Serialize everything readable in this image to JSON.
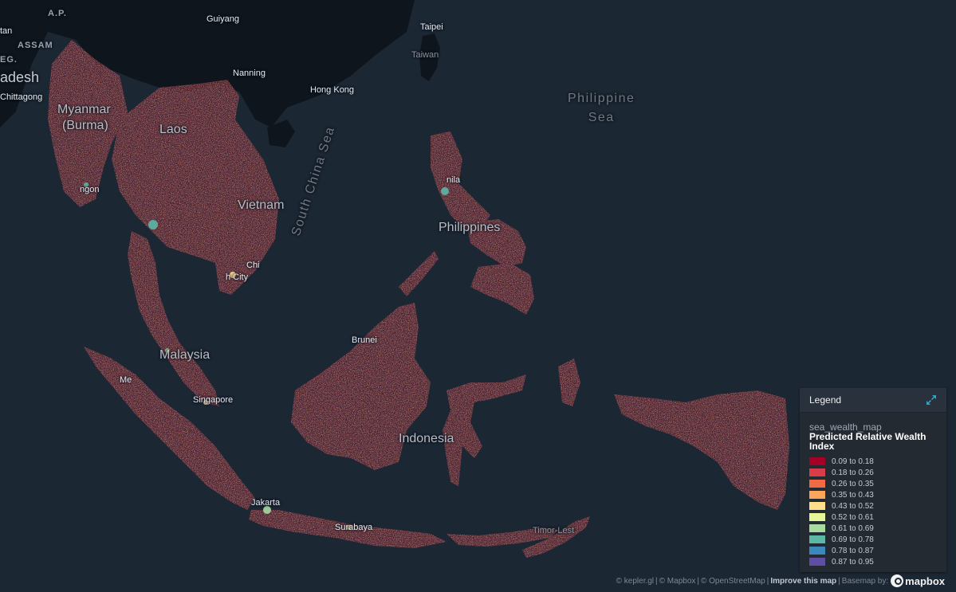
{
  "map": {
    "land_color": "#0f151d",
    "water_color": "#1c2734",
    "wealth_colors": [
      "#a50026",
      "#d93d4a",
      "#f26a43",
      "#fca55d",
      "#fee08b",
      "#e6f598",
      "#a7dba0",
      "#5db7a5",
      "#3b88bd",
      "#5e4fa2"
    ],
    "labels": {
      "ap": "A.P.",
      "tan": "tan",
      "assam": "ASSAM",
      "eg": "EG.",
      "adesh": "adesh",
      "chittagong": "Chittagong",
      "myanmar": "Myanmar",
      "burma": "(Burma)",
      "laos": "Laos",
      "ngon": "ngon",
      "guiyang": "Guiyang",
      "nanning": "Nanning",
      "hong_kong": "Hong Kong",
      "taipei": "Taipei",
      "taiwan": "Taiwan",
      "philippine_sea": "Philippine\nSea",
      "south_china_sea": "South China Sea",
      "vietnam": "Vietnam",
      "chi": "Chi",
      "city": "h City",
      "manila": "nila",
      "philippines": "Philippines",
      "brunei": "Brunei",
      "malaysia": "Malaysia",
      "medan": "Me",
      "singapore": "Singapore",
      "indonesia": "Indonesia",
      "jakarta": "Jakarta",
      "surabaya": "Surabaya",
      "timor_leste": "Timor-Lest"
    }
  },
  "legend": {
    "title": "Legend",
    "collapse_icon": "collapse-arrows-icon",
    "layer_name": "sea_wealth_map",
    "field_name": "Predicted Relative Wealth Index",
    "items": [
      {
        "label": "0.09 to 0.18",
        "color": "#a50026"
      },
      {
        "label": "0.18 to 0.26",
        "color": "#d93d4a"
      },
      {
        "label": "0.26 to 0.35",
        "color": "#f26a43"
      },
      {
        "label": "0.35 to 0.43",
        "color": "#fca55d"
      },
      {
        "label": "0.43 to 0.52",
        "color": "#fee08b"
      },
      {
        "label": "0.52 to 0.61",
        "color": "#e6f598"
      },
      {
        "label": "0.61 to 0.69",
        "color": "#a7dba0"
      },
      {
        "label": "0.69 to 0.78",
        "color": "#5db7a5"
      },
      {
        "label": "0.78 to 0.87",
        "color": "#3b88bd"
      },
      {
        "label": "0.87 to 0.95",
        "color": "#5e4fa2"
      }
    ]
  },
  "attribution": {
    "keplergl": "© kepler.gl",
    "mapbox": "© Mapbox",
    "osm": "© OpenStreetMap",
    "improve": "Improve this map",
    "basemap": "Basemap by:",
    "logo_text": "mapbox",
    "sep": "|"
  }
}
